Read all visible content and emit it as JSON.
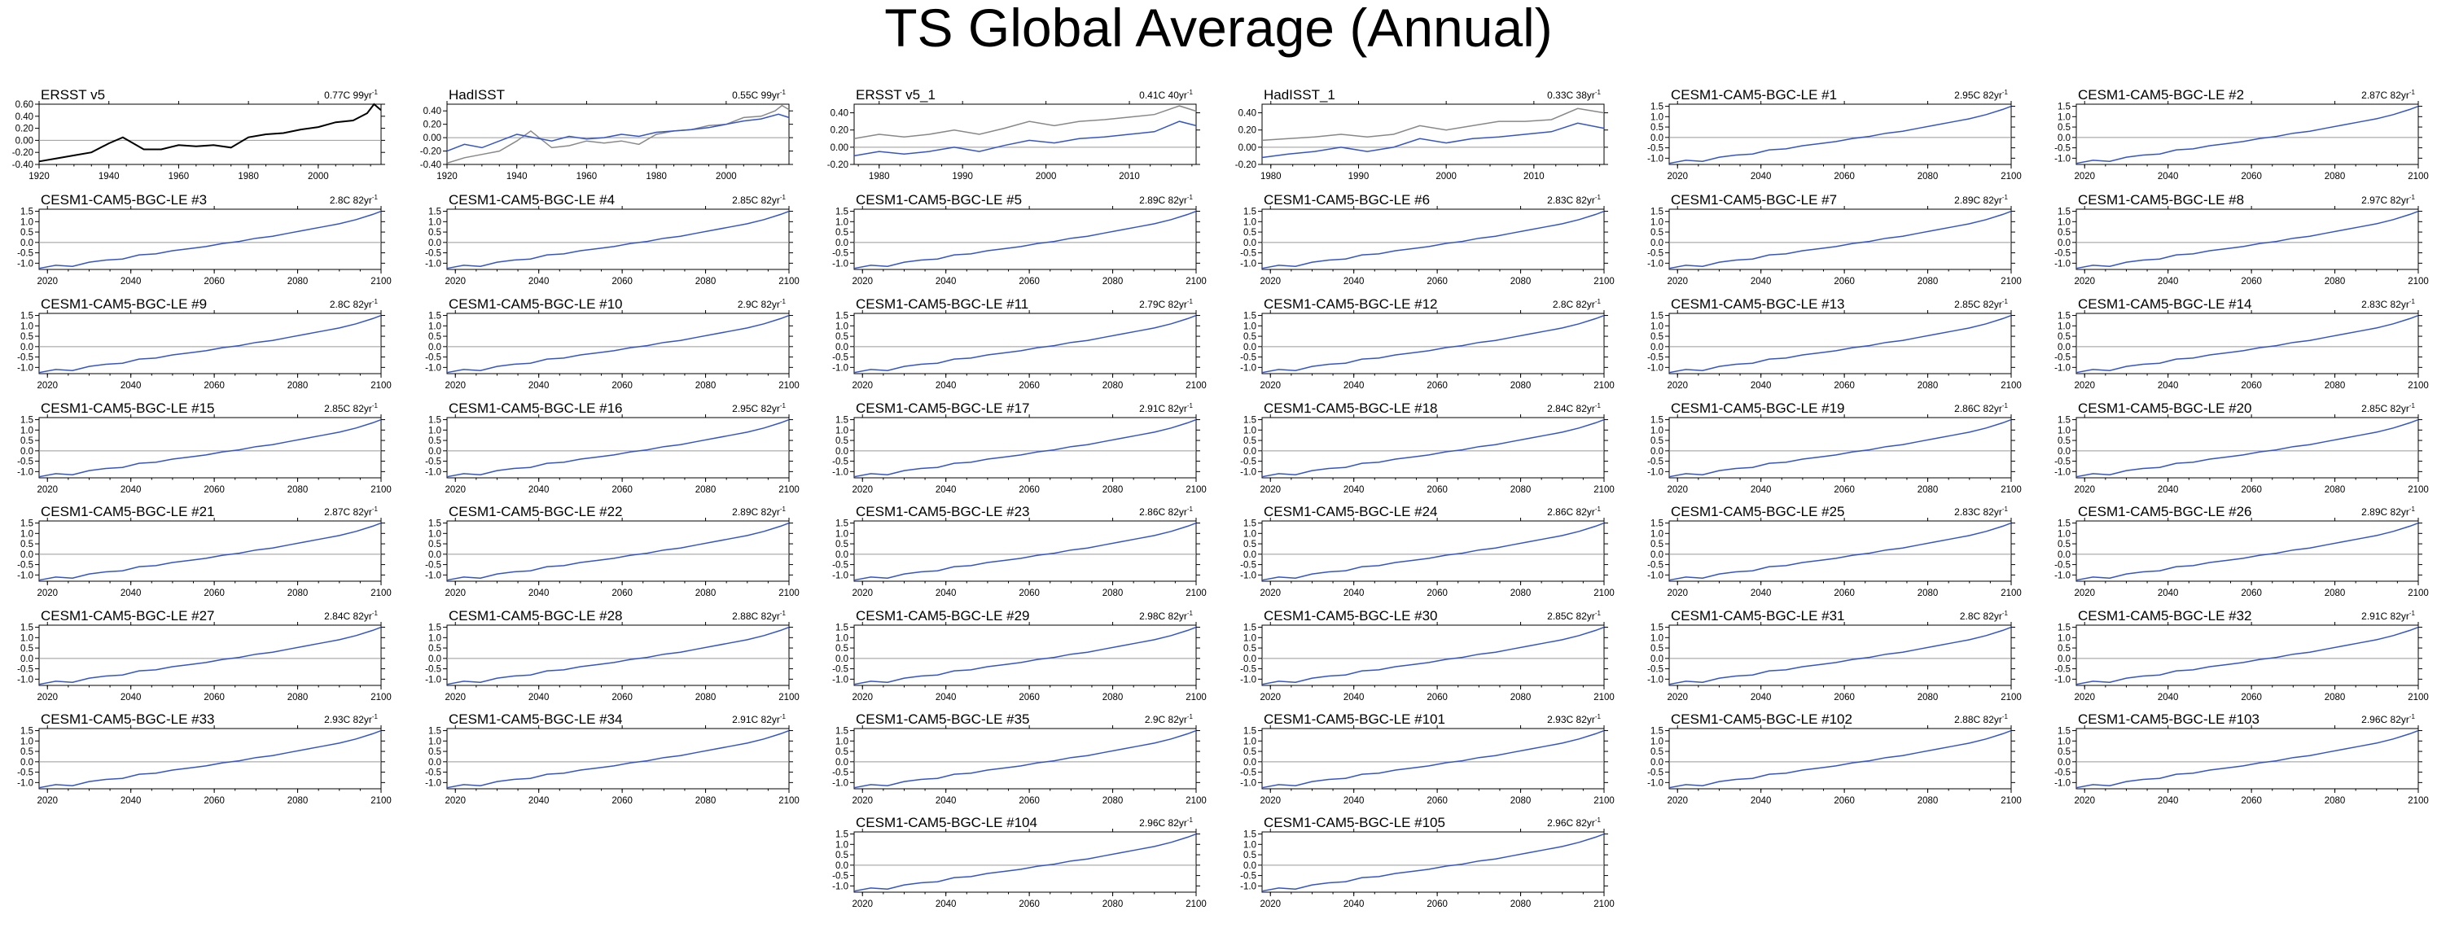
{
  "title": "TS Global Average (Annual)",
  "colors": {
    "model": "#3355cc",
    "obs": "#000000",
    "obs_overlay": "#888888",
    "zero_line": "#999999"
  },
  "chart_data": [
    {
      "type": "line",
      "title": "ERSST v5",
      "trend": "0.77C 99yr",
      "x_ticks": [
        "1920",
        "1940",
        "1960",
        "1980",
        "2000"
      ],
      "y_ticks": [
        "0.60",
        "0.40",
        "0.20",
        "0.00",
        "-0.20",
        "-0.40"
      ],
      "xlim": [
        1920,
        2018
      ],
      "ylim": [
        -0.4,
        0.6
      ],
      "series": [
        {
          "style": "obs",
          "x": [
            1920,
            1925,
            1930,
            1935,
            1940,
            1944,
            1950,
            1955,
            1960,
            1965,
            1970,
            1975,
            1980,
            1985,
            1990,
            1995,
            2000,
            2005,
            2010,
            2014,
            2016,
            2018
          ],
          "y": [
            -0.35,
            -0.3,
            -0.25,
            -0.2,
            -0.05,
            0.05,
            -0.15,
            -0.15,
            -0.08,
            -0.1,
            -0.08,
            -0.12,
            0.05,
            0.1,
            0.12,
            0.18,
            0.22,
            0.3,
            0.33,
            0.45,
            0.6,
            0.5
          ]
        }
      ]
    },
    {
      "type": "line",
      "title": "HadISST",
      "trend": "0.55C 99yr",
      "x_ticks": [
        "1920",
        "1940",
        "1960",
        "1980",
        "2000"
      ],
      "y_ticks": [
        "0.40",
        "0.20",
        "0.00",
        "-0.20",
        "-0.40"
      ],
      "xlim": [
        1920,
        2018
      ],
      "ylim": [
        -0.4,
        0.5
      ],
      "series": [
        {
          "style": "overlay",
          "x": [
            1920,
            1925,
            1930,
            1935,
            1940,
            1944,
            1950,
            1955,
            1960,
            1965,
            1970,
            1975,
            1980,
            1985,
            1990,
            1995,
            2000,
            2005,
            2010,
            2014,
            2016,
            2018
          ],
          "y": [
            -0.38,
            -0.3,
            -0.25,
            -0.2,
            -0.05,
            0.1,
            -0.15,
            -0.12,
            -0.05,
            -0.08,
            -0.05,
            -0.1,
            0.05,
            0.1,
            0.12,
            0.18,
            0.2,
            0.3,
            0.32,
            0.4,
            0.48,
            0.42
          ]
        },
        {
          "style": "model",
          "x": [
            1920,
            1925,
            1930,
            1935,
            1940,
            1945,
            1950,
            1955,
            1960,
            1965,
            1970,
            1975,
            1980,
            1985,
            1990,
            1995,
            2000,
            2005,
            2010,
            2015,
            2018
          ],
          "y": [
            -0.2,
            -0.1,
            -0.15,
            -0.05,
            0.05,
            0.0,
            -0.05,
            0.02,
            -0.02,
            0.0,
            0.05,
            0.02,
            0.08,
            0.1,
            0.12,
            0.15,
            0.2,
            0.25,
            0.28,
            0.35,
            0.3
          ]
        }
      ]
    },
    {
      "type": "line",
      "title": "ERSST v5_1",
      "trend": "0.41C 40yr",
      "x_ticks": [
        "1980",
        "1990",
        "2000",
        "2010"
      ],
      "y_ticks": [
        "0.40",
        "0.20",
        "0.00",
        "-0.20"
      ],
      "xlim": [
        1977,
        2018
      ],
      "ylim": [
        -0.2,
        0.5
      ],
      "series": [
        {
          "style": "overlay",
          "x": [
            1977,
            1980,
            1983,
            1986,
            1989,
            1992,
            1995,
            1998,
            2001,
            2004,
            2007,
            2010,
            2013,
            2016,
            2018
          ],
          "y": [
            0.1,
            0.15,
            0.12,
            0.15,
            0.2,
            0.15,
            0.22,
            0.3,
            0.25,
            0.3,
            0.32,
            0.35,
            0.38,
            0.48,
            0.42
          ]
        },
        {
          "style": "model",
          "x": [
            1977,
            1980,
            1983,
            1986,
            1989,
            1992,
            1995,
            1998,
            2001,
            2004,
            2007,
            2010,
            2013,
            2016,
            2018
          ],
          "y": [
            -0.1,
            -0.05,
            -0.08,
            -0.05,
            0.0,
            -0.05,
            0.02,
            0.08,
            0.05,
            0.1,
            0.12,
            0.15,
            0.18,
            0.3,
            0.25
          ]
        }
      ]
    },
    {
      "type": "line",
      "title": "HadISST_1",
      "trend": "0.33C 38yr",
      "x_ticks": [
        "1980",
        "1990",
        "2000",
        "2010"
      ],
      "y_ticks": [
        "0.40",
        "0.20",
        "0.00",
        "-0.20"
      ],
      "xlim": [
        1979,
        2018
      ],
      "ylim": [
        -0.2,
        0.5
      ],
      "series": [
        {
          "style": "overlay",
          "x": [
            1979,
            1982,
            1985,
            1988,
            1991,
            1994,
            1997,
            2000,
            2003,
            2006,
            2009,
            2012,
            2015,
            2018
          ],
          "y": [
            0.08,
            0.1,
            0.12,
            0.15,
            0.12,
            0.15,
            0.25,
            0.2,
            0.25,
            0.3,
            0.3,
            0.32,
            0.45,
            0.4
          ]
        },
        {
          "style": "model",
          "x": [
            1979,
            1982,
            1985,
            1988,
            1991,
            1994,
            1997,
            2000,
            2003,
            2006,
            2009,
            2012,
            2015,
            2018
          ],
          "y": [
            -0.12,
            -0.08,
            -0.05,
            0.0,
            -0.05,
            0.0,
            0.1,
            0.05,
            0.1,
            0.12,
            0.15,
            0.18,
            0.28,
            0.22
          ]
        }
      ]
    },
    {
      "type": "line",
      "title": "CESM1-CAM5-BGC-LE #1",
      "trend": "2.95C 82yr"
    },
    {
      "type": "line",
      "title": "CESM1-CAM5-BGC-LE #2",
      "trend": "2.87C 82yr"
    },
    {
      "type": "line",
      "title": "CESM1-CAM5-BGC-LE #3",
      "trend": "2.8C 82yr"
    },
    {
      "type": "line",
      "title": "CESM1-CAM5-BGC-LE #4",
      "trend": "2.85C 82yr"
    },
    {
      "type": "line",
      "title": "CESM1-CAM5-BGC-LE #5",
      "trend": "2.89C 82yr"
    },
    {
      "type": "line",
      "title": "CESM1-CAM5-BGC-LE #6",
      "trend": "2.83C 82yr"
    },
    {
      "type": "line",
      "title": "CESM1-CAM5-BGC-LE #7",
      "trend": "2.89C 82yr"
    },
    {
      "type": "line",
      "title": "CESM1-CAM5-BGC-LE #8",
      "trend": "2.97C 82yr"
    },
    {
      "type": "line",
      "title": "CESM1-CAM5-BGC-LE #9",
      "trend": "2.8C 82yr"
    },
    {
      "type": "line",
      "title": "CESM1-CAM5-BGC-LE #10",
      "trend": "2.9C 82yr"
    },
    {
      "type": "line",
      "title": "CESM1-CAM5-BGC-LE #11",
      "trend": "2.79C 82yr"
    },
    {
      "type": "line",
      "title": "CESM1-CAM5-BGC-LE #12",
      "trend": "2.8C 82yr"
    },
    {
      "type": "line",
      "title": "CESM1-CAM5-BGC-LE #13",
      "trend": "2.85C 82yr"
    },
    {
      "type": "line",
      "title": "CESM1-CAM5-BGC-LE #14",
      "trend": "2.83C 82yr"
    },
    {
      "type": "line",
      "title": "CESM1-CAM5-BGC-LE #15",
      "trend": "2.85C 82yr"
    },
    {
      "type": "line",
      "title": "CESM1-CAM5-BGC-LE #16",
      "trend": "2.95C 82yr"
    },
    {
      "type": "line",
      "title": "CESM1-CAM5-BGC-LE #17",
      "trend": "2.91C 82yr"
    },
    {
      "type": "line",
      "title": "CESM1-CAM5-BGC-LE #18",
      "trend": "2.84C 82yr"
    },
    {
      "type": "line",
      "title": "CESM1-CAM5-BGC-LE #19",
      "trend": "2.86C 82yr"
    },
    {
      "type": "line",
      "title": "CESM1-CAM5-BGC-LE #20",
      "trend": "2.85C 82yr"
    },
    {
      "type": "line",
      "title": "CESM1-CAM5-BGC-LE #21",
      "trend": "2.87C 82yr"
    },
    {
      "type": "line",
      "title": "CESM1-CAM5-BGC-LE #22",
      "trend": "2.89C 82yr"
    },
    {
      "type": "line",
      "title": "CESM1-CAM5-BGC-LE #23",
      "trend": "2.86C 82yr"
    },
    {
      "type": "line",
      "title": "CESM1-CAM5-BGC-LE #24",
      "trend": "2.86C 82yr"
    },
    {
      "type": "line",
      "title": "CESM1-CAM5-BGC-LE #25",
      "trend": "2.83C 82yr"
    },
    {
      "type": "line",
      "title": "CESM1-CAM5-BGC-LE #26",
      "trend": "2.89C 82yr"
    },
    {
      "type": "line",
      "title": "CESM1-CAM5-BGC-LE #27",
      "trend": "2.84C 82yr"
    },
    {
      "type": "line",
      "title": "CESM1-CAM5-BGC-LE #28",
      "trend": "2.88C 82yr"
    },
    {
      "type": "line",
      "title": "CESM1-CAM5-BGC-LE #29",
      "trend": "2.98C 82yr"
    },
    {
      "type": "line",
      "title": "CESM1-CAM5-BGC-LE #30",
      "trend": "2.85C 82yr"
    },
    {
      "type": "line",
      "title": "CESM1-CAM5-BGC-LE #31",
      "trend": "2.8C 82yr"
    },
    {
      "type": "line",
      "title": "CESM1-CAM5-BGC-LE #32",
      "trend": "2.91C 82yr"
    },
    {
      "type": "line",
      "title": "CESM1-CAM5-BGC-LE #33",
      "trend": "2.93C 82yr"
    },
    {
      "type": "line",
      "title": "CESM1-CAM5-BGC-LE #34",
      "trend": "2.91C 82yr"
    },
    {
      "type": "line",
      "title": "CESM1-CAM5-BGC-LE #35",
      "trend": "2.9C 82yr"
    },
    {
      "type": "line",
      "title": "CESM1-CAM5-BGC-LE #101",
      "trend": "2.93C 82yr"
    },
    {
      "type": "line",
      "title": "CESM1-CAM5-BGC-LE #102",
      "trend": "2.88C 82yr"
    },
    {
      "type": "line",
      "title": "CESM1-CAM5-BGC-LE #103",
      "trend": "2.96C 82yr"
    },
    {
      "type": "line",
      "title": "CESM1-CAM5-BGC-LE #104",
      "trend": "2.96C 82yr"
    },
    {
      "type": "line",
      "title": "CESM1-CAM5-BGC-LE #105",
      "trend": "2.96C 82yr"
    }
  ],
  "model_defaults": {
    "x_ticks": [
      "2020",
      "2040",
      "2060",
      "2080",
      "2100"
    ],
    "y_ticks": [
      "1.5",
      "1.0",
      "0.5",
      "0.0",
      "-0.5",
      "-1.0"
    ],
    "xlim": [
      2018,
      2100
    ],
    "ylim": [
      -1.3,
      1.6
    ],
    "series": [
      {
        "style": "model",
        "x": [
          2018,
          2022,
          2026,
          2030,
          2034,
          2038,
          2042,
          2046,
          2050,
          2054,
          2058,
          2062,
          2066,
          2070,
          2074,
          2078,
          2082,
          2086,
          2090,
          2094,
          2098,
          2100
        ],
        "y": [
          -1.25,
          -1.1,
          -1.15,
          -0.95,
          -0.85,
          -0.8,
          -0.6,
          -0.55,
          -0.4,
          -0.3,
          -0.2,
          -0.05,
          0.05,
          0.2,
          0.3,
          0.45,
          0.6,
          0.75,
          0.9,
          1.1,
          1.35,
          1.5
        ]
      }
    ]
  }
}
